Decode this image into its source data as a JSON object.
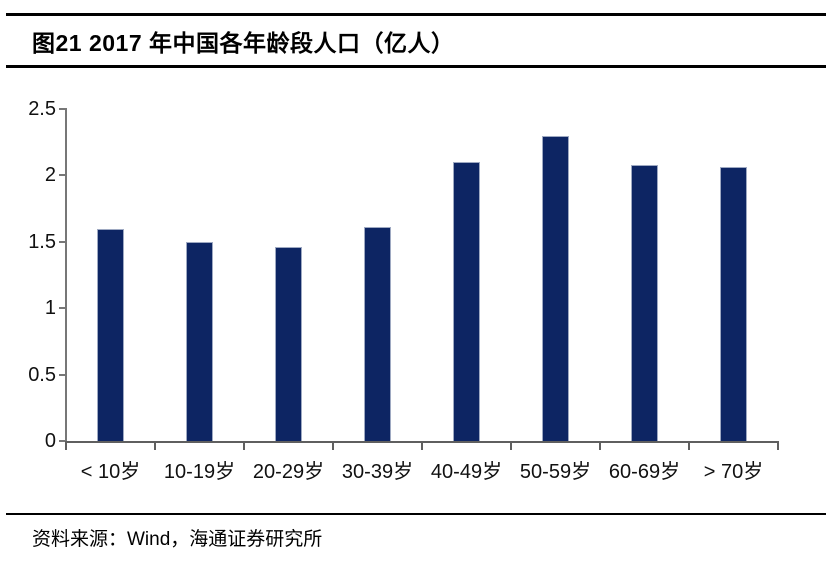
{
  "header": {
    "title": "图21 2017 年中国各年龄段人口（亿人）"
  },
  "footer": {
    "source": "资料来源：Wind，海通证券研究所"
  },
  "chart_data": {
    "type": "bar",
    "title": "图21 2017 年中国各年龄段人口（亿人）",
    "categories": [
      "< 10岁",
      "10-19岁",
      "20-29岁",
      "30-39岁",
      "40-49岁",
      "50-59岁",
      "60-69岁",
      "> 70岁"
    ],
    "values": [
      1.6,
      1.5,
      1.46,
      1.61,
      2.1,
      2.3,
      2.08,
      2.06
    ],
    "unit": "亿人",
    "xlabel": "",
    "ylabel": "",
    "ylim": [
      0,
      2.5
    ],
    "yticks": [
      0,
      0.5,
      1,
      1.5,
      2,
      2.5
    ],
    "grid": false,
    "legend": "none",
    "bar_color": "#0d2563",
    "bar_border_color": "#9ea9c2",
    "axis_color": "#6f6f6f",
    "label_color": "#111111"
  }
}
